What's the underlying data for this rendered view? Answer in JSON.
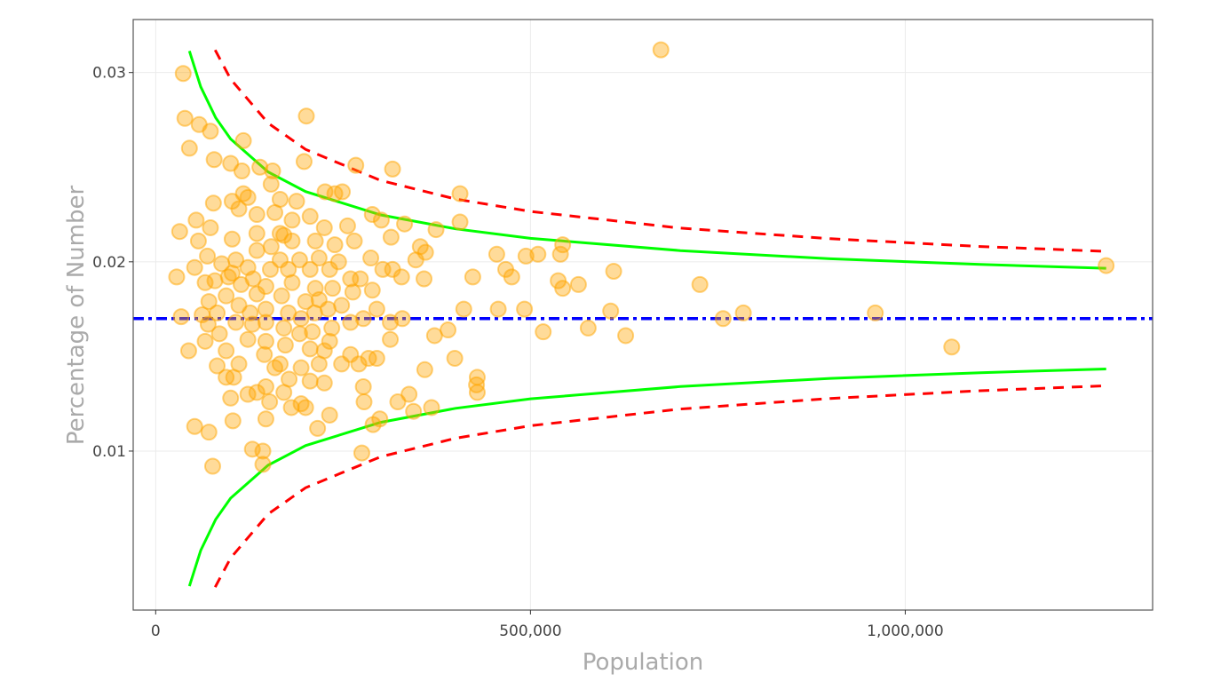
{
  "chart_data": {
    "type": "scatter",
    "title": "",
    "xlabel": "Population",
    "ylabel": "Percentage of Number",
    "xlim": [
      -30000,
      1330000
    ],
    "ylim": [
      0.0016,
      0.0328
    ],
    "grid": true,
    "legend": "none",
    "x_ticks": [
      {
        "value": 0,
        "label": "0"
      },
      {
        "value": 500000,
        "label": "500,000"
      },
      {
        "value": 1000000,
        "label": "1,000,000"
      }
    ],
    "y_ticks": [
      {
        "value": 0.01,
        "label": "0.01"
      },
      {
        "value": 0.02,
        "label": "0.02"
      },
      {
        "value": 0.03,
        "label": "0.03"
      }
    ],
    "colors": {
      "points": "#FFA500",
      "mean": "#0000FF",
      "inner_limits": "#00FF00",
      "outer_limits": "#FF0000",
      "grid": "#EBEBEB",
      "panel_border": "#555555"
    },
    "mean": 0.017,
    "points": [
      [
        36700,
        0.02995
      ],
      [
        39000,
        0.02758
      ],
      [
        45000,
        0.026
      ],
      [
        58000,
        0.02725
      ],
      [
        73000,
        0.0269
      ],
      [
        78000,
        0.0254
      ],
      [
        117000,
        0.0264
      ],
      [
        201000,
        0.0277
      ],
      [
        674000,
        0.0312
      ],
      [
        100000,
        0.0252
      ],
      [
        115000,
        0.0248
      ],
      [
        139000,
        0.025
      ],
      [
        154000,
        0.0241
      ],
      [
        156000,
        0.0248
      ],
      [
        198000,
        0.0253
      ],
      [
        267000,
        0.0251
      ],
      [
        316000,
        0.0249
      ],
      [
        226000,
        0.0237
      ],
      [
        249000,
        0.0237
      ],
      [
        239000,
        0.0236
      ],
      [
        406000,
        0.0236
      ],
      [
        32000,
        0.0216
      ],
      [
        28000,
        0.0192
      ],
      [
        34000,
        0.0171
      ],
      [
        44000,
        0.0153
      ],
      [
        54000,
        0.0222
      ],
      [
        73000,
        0.0218
      ],
      [
        77000,
        0.0231
      ],
      [
        69000,
        0.0203
      ],
      [
        57000,
        0.0211
      ],
      [
        102000,
        0.0232
      ],
      [
        111000,
        0.0228
      ],
      [
        123000,
        0.0234
      ],
      [
        135000,
        0.0225
      ],
      [
        159000,
        0.0226
      ],
      [
        206000,
        0.0224
      ],
      [
        182000,
        0.0222
      ],
      [
        171000,
        0.0214
      ],
      [
        225000,
        0.0218
      ],
      [
        256000,
        0.0219
      ],
      [
        289000,
        0.0225
      ],
      [
        301000,
        0.0222
      ],
      [
        332000,
        0.022
      ],
      [
        374000,
        0.0217
      ],
      [
        406000,
        0.0221
      ],
      [
        314000,
        0.0213
      ],
      [
        353000,
        0.0208
      ],
      [
        360000,
        0.0205
      ],
      [
        316000,
        0.0196
      ],
      [
        328000,
        0.0192
      ],
      [
        358000,
        0.0191
      ],
      [
        273000,
        0.0191
      ],
      [
        289000,
        0.0185
      ],
      [
        263000,
        0.0184
      ],
      [
        347000,
        0.0201
      ],
      [
        455000,
        0.0204
      ],
      [
        467000,
        0.0196
      ],
      [
        475000,
        0.0192
      ],
      [
        494000,
        0.0203
      ],
      [
        510000,
        0.0204
      ],
      [
        543000,
        0.0209
      ],
      [
        540000,
        0.0204
      ],
      [
        537000,
        0.019
      ],
      [
        543000,
        0.0186
      ],
      [
        564000,
        0.0188
      ],
      [
        423000,
        0.0192
      ],
      [
        611000,
        0.0195
      ],
      [
        726000,
        0.0188
      ],
      [
        457000,
        0.0175
      ],
      [
        492000,
        0.0175
      ],
      [
        411000,
        0.0175
      ],
      [
        607000,
        0.0174
      ],
      [
        784000,
        0.0173
      ],
      [
        960000,
        0.0173
      ],
      [
        757000,
        0.017
      ],
      [
        517000,
        0.0163
      ],
      [
        577000,
        0.0165
      ],
      [
        627000,
        0.0161
      ],
      [
        390000,
        0.0164
      ],
      [
        372000,
        0.0161
      ],
      [
        1062000,
        0.0155
      ],
      [
        1268000,
        0.0198
      ],
      [
        399000,
        0.0149
      ],
      [
        359000,
        0.0143
      ],
      [
        429000,
        0.0139
      ],
      [
        428000,
        0.0135
      ],
      [
        429000,
        0.0131
      ],
      [
        368000,
        0.0123
      ],
      [
        344000,
        0.0121
      ],
      [
        338000,
        0.013
      ],
      [
        323000,
        0.0126
      ],
      [
        299000,
        0.0117
      ],
      [
        290000,
        0.0114
      ],
      [
        275000,
        0.0099
      ],
      [
        278000,
        0.0126
      ],
      [
        232000,
        0.0119
      ],
      [
        216000,
        0.0112
      ],
      [
        200000,
        0.0123
      ],
      [
        181000,
        0.0123
      ],
      [
        178000,
        0.0138
      ],
      [
        166000,
        0.0146
      ],
      [
        147000,
        0.0117
      ],
      [
        129000,
        0.0101
      ],
      [
        143000,
        0.01
      ],
      [
        143000,
        0.0093
      ],
      [
        52000,
        0.0113
      ],
      [
        71000,
        0.011
      ],
      [
        76000,
        0.0092
      ],
      [
        103000,
        0.0116
      ],
      [
        100000,
        0.0128
      ],
      [
        135000,
        0.0131
      ],
      [
        104000,
        0.0139
      ],
      [
        82000,
        0.0145
      ],
      [
        94000,
        0.0153
      ],
      [
        66000,
        0.0158
      ],
      [
        85000,
        0.0162
      ],
      [
        71000,
        0.0179
      ],
      [
        79000,
        0.019
      ],
      [
        66000,
        0.0189
      ],
      [
        88000,
        0.0199
      ],
      [
        107000,
        0.0201
      ],
      [
        102000,
        0.0194
      ],
      [
        123000,
        0.0197
      ],
      [
        135000,
        0.0206
      ],
      [
        154000,
        0.0208
      ],
      [
        166000,
        0.0201
      ],
      [
        177000,
        0.0196
      ],
      [
        192000,
        0.0201
      ],
      [
        206000,
        0.0196
      ],
      [
        218000,
        0.0202
      ],
      [
        232000,
        0.0196
      ],
      [
        244000,
        0.02
      ],
      [
        147000,
        0.0187
      ],
      [
        168000,
        0.0182
      ],
      [
        135000,
        0.0183
      ],
      [
        111000,
        0.0177
      ],
      [
        126000,
        0.0173
      ],
      [
        147000,
        0.0175
      ],
      [
        177000,
        0.0173
      ],
      [
        194000,
        0.017
      ],
      [
        212000,
        0.0173
      ],
      [
        230000,
        0.0175
      ],
      [
        248000,
        0.0177
      ],
      [
        107000,
        0.0168
      ],
      [
        171000,
        0.0165
      ],
      [
        192000,
        0.0162
      ],
      [
        209000,
        0.0163
      ],
      [
        235000,
        0.0165
      ],
      [
        260000,
        0.0168
      ],
      [
        277000,
        0.017
      ],
      [
        295000,
        0.0175
      ],
      [
        313000,
        0.0168
      ],
      [
        329000,
        0.017
      ],
      [
        123000,
        0.0159
      ],
      [
        147000,
        0.0158
      ],
      [
        173000,
        0.0156
      ],
      [
        206000,
        0.0154
      ],
      [
        232000,
        0.0158
      ],
      [
        260000,
        0.0151
      ],
      [
        271000,
        0.0146
      ],
      [
        295000,
        0.0149
      ],
      [
        313000,
        0.0159
      ],
      [
        159000,
        0.0144
      ],
      [
        194000,
        0.0144
      ],
      [
        218000,
        0.0146
      ],
      [
        147000,
        0.0134
      ],
      [
        171000,
        0.0131
      ],
      [
        206000,
        0.0137
      ],
      [
        225000,
        0.0136
      ],
      [
        152000,
        0.0126
      ],
      [
        194000,
        0.0125
      ],
      [
        123000,
        0.013
      ],
      [
        166000,
        0.0215
      ],
      [
        182000,
        0.0211
      ],
      [
        213000,
        0.0211
      ],
      [
        239000,
        0.0209
      ],
      [
        265000,
        0.0211
      ],
      [
        287000,
        0.0202
      ],
      [
        260000,
        0.0191
      ],
      [
        236000,
        0.0186
      ],
      [
        213000,
        0.0186
      ],
      [
        182000,
        0.0189
      ],
      [
        114000,
        0.0188
      ],
      [
        94000,
        0.0182
      ],
      [
        82000,
        0.0173
      ],
      [
        97000,
        0.0192
      ],
      [
        130000,
        0.0191
      ],
      [
        153000,
        0.0196
      ],
      [
        200000,
        0.0179
      ],
      [
        218000,
        0.018
      ],
      [
        147000,
        0.0168
      ],
      [
        129000,
        0.0167
      ],
      [
        70000,
        0.0167
      ],
      [
        62000,
        0.0172
      ],
      [
        225000,
        0.0153
      ],
      [
        248000,
        0.0146
      ],
      [
        111000,
        0.0146
      ],
      [
        94000,
        0.0139
      ],
      [
        145000,
        0.0151
      ],
      [
        284000,
        0.0149
      ],
      [
        277000,
        0.0134
      ],
      [
        303000,
        0.0196
      ],
      [
        166000,
        0.0233
      ],
      [
        117000,
        0.0236
      ],
      [
        188000,
        0.0232
      ],
      [
        102000,
        0.0212
      ],
      [
        135000,
        0.0215
      ],
      [
        52000,
        0.0197
      ]
    ],
    "limit_lines": [
      {
        "style": "solid",
        "color": "#00FF00",
        "bound": "upper",
        "x": [
          45000,
          60000,
          80000,
          100000,
          150000,
          200000,
          300000,
          400000,
          500000,
          700000,
          900000,
          1100000,
          1268000
        ],
        "y": [
          0.03114,
          0.02925,
          0.02761,
          0.02649,
          0.02475,
          0.02371,
          0.02248,
          0.02174,
          0.02124,
          0.02059,
          0.02016,
          0.01986,
          0.01966
        ]
      },
      {
        "style": "solid",
        "color": "#00FF00",
        "bound": "lower",
        "x": [
          45000,
          60000,
          80000,
          100000,
          150000,
          200000,
          300000,
          400000,
          500000,
          700000,
          900000,
          1100000,
          1268000
        ],
        "y": [
          0.00286,
          0.00475,
          0.00639,
          0.00751,
          0.00925,
          0.01029,
          0.01152,
          0.01226,
          0.01276,
          0.01341,
          0.01384,
          0.01414,
          0.01434
        ]
      },
      {
        "style": "dashed",
        "color": "#FF0000",
        "bound": "upper",
        "x": [
          79400,
          100000,
          150000,
          200000,
          300000,
          400000,
          500000,
          700000,
          900000,
          1100000,
          1268000
        ],
        "y": [
          0.03119,
          0.02965,
          0.02733,
          0.02594,
          0.0243,
          0.02332,
          0.02266,
          0.02178,
          0.02122,
          0.02081,
          0.02055
        ]
      },
      {
        "style": "dashed",
        "color": "#FF0000",
        "bound": "lower",
        "x": [
          79400,
          100000,
          150000,
          200000,
          300000,
          400000,
          500000,
          700000,
          900000,
          1100000,
          1268000
        ],
        "y": [
          0.00281,
          0.00435,
          0.00667,
          0.00806,
          0.0097,
          0.01068,
          0.01134,
          0.01222,
          0.01278,
          0.01319,
          0.01345
        ]
      }
    ]
  }
}
